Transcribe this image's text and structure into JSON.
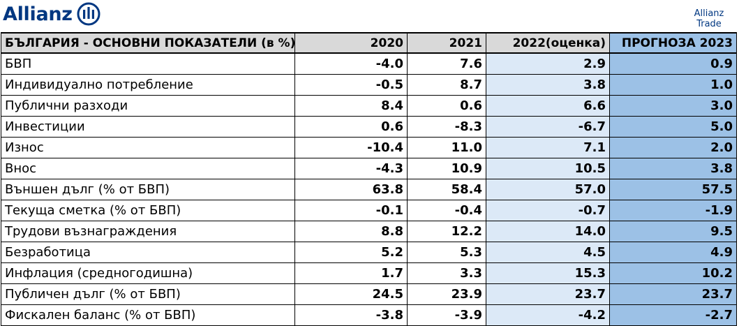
{
  "brand": {
    "name": "Allianz",
    "logo_icon": "allianz-eagle-logo",
    "sub_brand_line1": "Allianz",
    "sub_brand_line2": "Trade",
    "color": "#003781"
  },
  "table": {
    "columns": [
      "БЪЛГАРИЯ - ОСНОВНИ ПОКАЗАТЕЛИ (в %)",
      "2020",
      "2021",
      "2022(оценка)",
      "ПРОГНОЗА 2023"
    ],
    "rows": [
      [
        "БВП",
        "-4.0",
        "7.6",
        "2.9",
        "0.9"
      ],
      [
        "Индивидуално потребление",
        "-0.5",
        "8.7",
        "3.8",
        "1.0"
      ],
      [
        "Публични разходи",
        "8.4",
        "0.6",
        "6.6",
        "3.0"
      ],
      [
        "Инвестиции",
        "0.6",
        "-8.3",
        "-6.7",
        "5.0"
      ],
      [
        "Износ",
        "-10.4",
        "11.0",
        "7.1",
        "2.0"
      ],
      [
        "Внос",
        "-4.3",
        "10.9",
        "10.5",
        "3.8"
      ],
      [
        "Външен дълг (% от БВП)",
        "63.8",
        "58.4",
        "57.0",
        "57.5"
      ],
      [
        "Текуща сметка (% от БВП)",
        "-0.1",
        "-0.4",
        "-0.7",
        "-1.9"
      ],
      [
        "Трудови възнаграждения",
        "8.8",
        "12.2",
        "14.0",
        "9.5"
      ],
      [
        "Безработица",
        "5.2",
        "5.3",
        "4.5",
        "4.9"
      ],
      [
        "Инфлация (средногодишна)",
        "1.7",
        "3.3",
        "15.3",
        "10.2"
      ],
      [
        "Публичен дълг (% от БВП)",
        "24.5",
        "23.9",
        "23.7",
        "23.7"
      ],
      [
        "Фискален баланс (% от БВП)",
        "-3.8",
        "-3.9",
        "-4.2",
        "-2.7"
      ]
    ],
    "colors": {
      "header_bg": "#d9d9d9",
      "estimate_bg": "#dce9f7",
      "forecast_bg": "#9cc1e6"
    }
  }
}
